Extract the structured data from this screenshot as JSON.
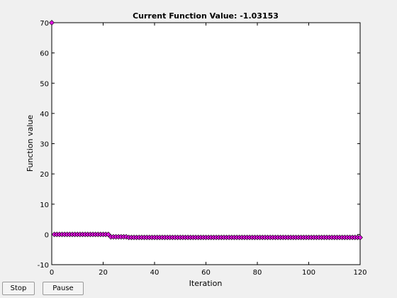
{
  "chart_data": {
    "type": "scatter",
    "title": "Current Function Value: -1.03153",
    "xlabel": "Iteration",
    "ylabel": "Function value",
    "xlim": [
      0,
      120
    ],
    "ylim": [
      -10,
      70
    ],
    "xticks": [
      0,
      20,
      40,
      60,
      80,
      100,
      120
    ],
    "yticks": [
      -10,
      0,
      10,
      20,
      30,
      40,
      50,
      60,
      70
    ],
    "marker": "diamond",
    "marker_color": "#e010e0",
    "grid": false,
    "series": [
      {
        "x": [
          0,
          1,
          2,
          3,
          4,
          5,
          6,
          7,
          8,
          9,
          10,
          11,
          12,
          13,
          14,
          15,
          16,
          17,
          18,
          19,
          20,
          21,
          22,
          23,
          24,
          25,
          26,
          27,
          28,
          29,
          30,
          31,
          32,
          33,
          34,
          35,
          36,
          37,
          38,
          39,
          40,
          41,
          42,
          43,
          44,
          45,
          46,
          47,
          48,
          49,
          50,
          51,
          52,
          53,
          54,
          55,
          56,
          57,
          58,
          59,
          60,
          61,
          62,
          63,
          64,
          65,
          66,
          67,
          68,
          69,
          70,
          71,
          72,
          73,
          74,
          75,
          76,
          77,
          78,
          79,
          80,
          81,
          82,
          83,
          84,
          85,
          86,
          87,
          88,
          89,
          90,
          91,
          92,
          93,
          94,
          95,
          96,
          97,
          98,
          99,
          100,
          101,
          102,
          103,
          104,
          105,
          106,
          107,
          108,
          109,
          110,
          111,
          112,
          113,
          114,
          115,
          116,
          117,
          118,
          119,
          120
        ],
        "y": [
          70,
          0,
          0,
          0,
          0,
          0,
          0,
          0,
          0,
          0,
          0,
          0,
          0,
          0,
          0,
          0,
          0,
          0,
          0,
          0,
          0,
          0,
          0,
          -0.8,
          -0.8,
          -0.8,
          -0.8,
          -0.8,
          -0.8,
          -0.8,
          -1,
          -1,
          -1,
          -1,
          -1,
          -1,
          -1,
          -1,
          -1,
          -1,
          -1,
          -1,
          -1,
          -1,
          -1,
          -1,
          -1,
          -1,
          -1,
          -1,
          -1,
          -1,
          -1,
          -1,
          -1,
          -1,
          -1,
          -1,
          -1,
          -1,
          -1,
          -1,
          -1,
          -1,
          -1,
          -1,
          -1,
          -1,
          -1,
          -1,
          -1,
          -1,
          -1,
          -1,
          -1,
          -1,
          -1,
          -1,
          -1,
          -1,
          -1,
          -1,
          -1,
          -1,
          -1,
          -1,
          -1,
          -1,
          -1,
          -1,
          -1,
          -1,
          -1,
          -1,
          -1,
          -1,
          -1,
          -1,
          -1,
          -1,
          -1,
          -1,
          -1,
          -1,
          -1,
          -1,
          -1,
          -1,
          -1,
          -1,
          -1,
          -1,
          -1,
          -1,
          -1,
          -1,
          -1,
          -1,
          -1,
          -1,
          -1.03153
        ]
      }
    ]
  },
  "buttons": {
    "stop": "Stop",
    "pause": "Pause"
  }
}
